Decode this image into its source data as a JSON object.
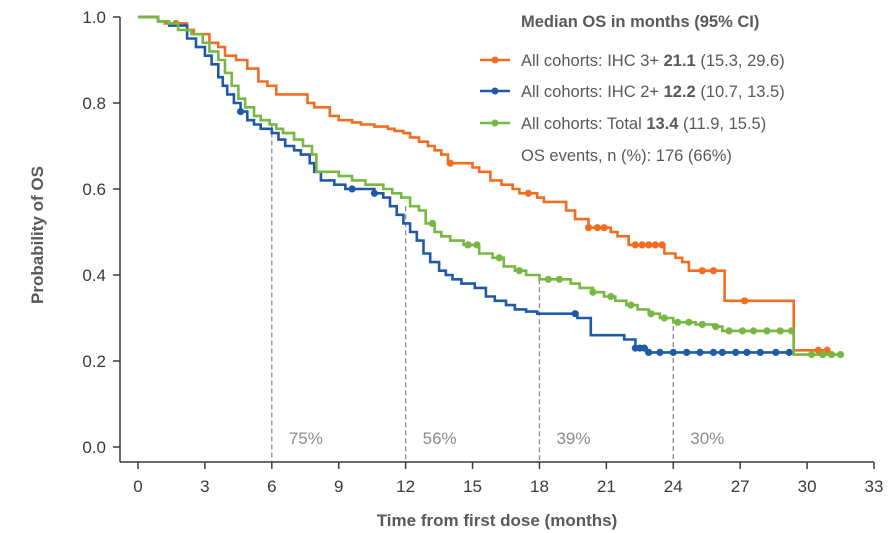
{
  "chart_data": {
    "type": "line",
    "step": true,
    "xlabel": "Time from first dose (months)",
    "ylabel": "Probability of OS",
    "xlim": [
      0,
      33
    ],
    "ylim": [
      0,
      1
    ],
    "x_ticks": [
      0,
      3,
      6,
      9,
      12,
      15,
      18,
      21,
      24,
      27,
      30,
      33
    ],
    "x_tick_labels": [
      "0",
      "3",
      "6",
      "9",
      "12",
      "15",
      "18",
      "21",
      "24",
      "27",
      "30",
      "33"
    ],
    "y_ticks": [
      0,
      0.2,
      0.4,
      0.6,
      0.8,
      1.0
    ],
    "y_tick_labels": [
      "0.0",
      "0.2",
      "0.4",
      "0.6",
      "0.8",
      "1.0"
    ],
    "grid": false,
    "legend_position": "top-right",
    "legend": {
      "title": "Median OS in months (95% CI)",
      "entries": [
        {
          "prefix": "All cohorts: IHC 3+ ",
          "median": "21.1",
          "ci": " (15.3, 29.6)"
        },
        {
          "prefix": "All cohorts: IHC 2+ ",
          "median": "12.2",
          "ci": " (10.7, 13.5)"
        },
        {
          "prefix": "All cohorts: Total ",
          "median": "13.4",
          "ci": " (11.9, 15.5)"
        }
      ],
      "footer": "OS events, n (%): 176 (66%)"
    },
    "landmarks": [
      {
        "x": 6,
        "y": 0.75,
        "label": "75%"
      },
      {
        "x": 12,
        "y": 0.56,
        "label": "56%"
      },
      {
        "x": 18,
        "y": 0.39,
        "label": "39%"
      },
      {
        "x": 24,
        "y": 0.3,
        "label": "30%"
      }
    ],
    "series": [
      {
        "name": "All cohorts: IHC 3+",
        "color": "#f26d21",
        "points": [
          [
            0,
            1.0
          ],
          [
            0.6,
            1.0
          ],
          [
            0.9,
            0.99
          ],
          [
            1.2,
            0.985
          ],
          [
            2.2,
            0.97
          ],
          [
            2.5,
            0.96
          ],
          [
            3.2,
            0.94
          ],
          [
            3.6,
            0.93
          ],
          [
            3.9,
            0.91
          ],
          [
            4.4,
            0.9
          ],
          [
            4.9,
            0.88
          ],
          [
            5.4,
            0.85
          ],
          [
            5.8,
            0.84
          ],
          [
            6.2,
            0.82
          ],
          [
            7.2,
            0.82
          ],
          [
            7.6,
            0.8
          ],
          [
            7.9,
            0.79
          ],
          [
            8.6,
            0.77
          ],
          [
            9.0,
            0.76
          ],
          [
            9.6,
            0.755
          ],
          [
            10.0,
            0.75
          ],
          [
            10.6,
            0.745
          ],
          [
            11.2,
            0.74
          ],
          [
            11.5,
            0.735
          ],
          [
            11.9,
            0.73
          ],
          [
            12.2,
            0.72
          ],
          [
            12.6,
            0.71
          ],
          [
            13.0,
            0.7
          ],
          [
            13.3,
            0.69
          ],
          [
            13.6,
            0.68
          ],
          [
            13.9,
            0.66
          ],
          [
            14.7,
            0.66
          ],
          [
            15.0,
            0.65
          ],
          [
            15.3,
            0.64
          ],
          [
            15.8,
            0.62
          ],
          [
            16.3,
            0.61
          ],
          [
            16.8,
            0.6
          ],
          [
            17.1,
            0.59
          ],
          [
            17.6,
            0.59
          ],
          [
            17.9,
            0.58
          ],
          [
            18.2,
            0.57
          ],
          [
            19.2,
            0.55
          ],
          [
            19.6,
            0.53
          ],
          [
            20.2,
            0.51
          ],
          [
            20.8,
            0.51
          ],
          [
            21.2,
            0.5
          ],
          [
            21.5,
            0.49
          ],
          [
            22.0,
            0.47
          ],
          [
            23.4,
            0.47
          ],
          [
            23.6,
            0.45
          ],
          [
            24.1,
            0.44
          ],
          [
            24.4,
            0.43
          ],
          [
            24.7,
            0.41
          ],
          [
            26.1,
            0.41
          ],
          [
            26.3,
            0.34
          ],
          [
            29.3,
            0.34
          ],
          [
            29.4,
            0.225
          ],
          [
            31.0,
            0.225
          ]
        ],
        "censor_x": [
          1.7,
          14.0,
          17.5,
          20.2,
          20.6,
          20.9,
          22.3,
          22.6,
          22.9,
          23.2,
          23.5,
          25.3,
          25.8,
          27.2,
          30.5,
          30.9
        ]
      },
      {
        "name": "All cohorts: IHC 2+",
        "color": "#1f5aa6",
        "points": [
          [
            0,
            1.0
          ],
          [
            0.9,
            0.99
          ],
          [
            1.4,
            0.98
          ],
          [
            2.2,
            0.95
          ],
          [
            2.6,
            0.93
          ],
          [
            3.0,
            0.91
          ],
          [
            3.3,
            0.89
          ],
          [
            3.6,
            0.86
          ],
          [
            3.8,
            0.84
          ],
          [
            4.0,
            0.82
          ],
          [
            4.3,
            0.8
          ],
          [
            4.6,
            0.78
          ],
          [
            4.9,
            0.76
          ],
          [
            5.2,
            0.75
          ],
          [
            5.5,
            0.74
          ],
          [
            6.0,
            0.73
          ],
          [
            6.3,
            0.715
          ],
          [
            6.6,
            0.7
          ],
          [
            7.0,
            0.69
          ],
          [
            7.3,
            0.68
          ],
          [
            7.7,
            0.66
          ],
          [
            7.9,
            0.64
          ],
          [
            8.2,
            0.62
          ],
          [
            8.8,
            0.61
          ],
          [
            9.3,
            0.6
          ],
          [
            10.1,
            0.6
          ],
          [
            10.6,
            0.59
          ],
          [
            11.0,
            0.58
          ],
          [
            11.3,
            0.56
          ],
          [
            11.6,
            0.54
          ],
          [
            11.9,
            0.52
          ],
          [
            12.2,
            0.5
          ],
          [
            12.5,
            0.48
          ],
          [
            12.8,
            0.45
          ],
          [
            13.1,
            0.43
          ],
          [
            13.5,
            0.41
          ],
          [
            13.8,
            0.4
          ],
          [
            14.1,
            0.39
          ],
          [
            14.5,
            0.38
          ],
          [
            15.1,
            0.37
          ],
          [
            15.6,
            0.35
          ],
          [
            16.0,
            0.34
          ],
          [
            16.5,
            0.33
          ],
          [
            16.9,
            0.32
          ],
          [
            17.4,
            0.315
          ],
          [
            17.9,
            0.31
          ],
          [
            19.4,
            0.31
          ],
          [
            19.7,
            0.3
          ],
          [
            20.3,
            0.26
          ],
          [
            21.6,
            0.26
          ],
          [
            21.8,
            0.25
          ],
          [
            22.3,
            0.23
          ],
          [
            22.8,
            0.22
          ],
          [
            29.3,
            0.22
          ]
        ],
        "censor_x": [
          4.6,
          9.6,
          10.6,
          19.6,
          22.3,
          22.5,
          22.7,
          22.9,
          23.4,
          24.0,
          24.6,
          25.2,
          25.8,
          26.2,
          26.8,
          27.3,
          27.9,
          28.6,
          29.2
        ]
      },
      {
        "name": "All cohorts: Total",
        "color": "#77b843",
        "points": [
          [
            0,
            1.0
          ],
          [
            0.9,
            0.99
          ],
          [
            1.4,
            0.985
          ],
          [
            1.8,
            0.97
          ],
          [
            2.4,
            0.96
          ],
          [
            2.9,
            0.94
          ],
          [
            3.2,
            0.92
          ],
          [
            3.6,
            0.9
          ],
          [
            3.9,
            0.87
          ],
          [
            4.2,
            0.84
          ],
          [
            4.5,
            0.81
          ],
          [
            4.8,
            0.79
          ],
          [
            5.2,
            0.77
          ],
          [
            5.5,
            0.76
          ],
          [
            5.9,
            0.75
          ],
          [
            6.2,
            0.74
          ],
          [
            6.5,
            0.73
          ],
          [
            7.0,
            0.715
          ],
          [
            7.4,
            0.7
          ],
          [
            7.8,
            0.68
          ],
          [
            8.0,
            0.64
          ],
          [
            9.0,
            0.63
          ],
          [
            9.6,
            0.62
          ],
          [
            10.2,
            0.61
          ],
          [
            11.0,
            0.6
          ],
          [
            11.4,
            0.59
          ],
          [
            11.8,
            0.58
          ],
          [
            12.2,
            0.56
          ],
          [
            12.6,
            0.55
          ],
          [
            12.9,
            0.52
          ],
          [
            13.3,
            0.5
          ],
          [
            13.6,
            0.49
          ],
          [
            14.0,
            0.48
          ],
          [
            14.6,
            0.47
          ],
          [
            15.3,
            0.45
          ],
          [
            15.9,
            0.44
          ],
          [
            16.4,
            0.42
          ],
          [
            16.9,
            0.41
          ],
          [
            17.4,
            0.4
          ],
          [
            18.0,
            0.39
          ],
          [
            19.0,
            0.39
          ],
          [
            19.4,
            0.38
          ],
          [
            19.8,
            0.37
          ],
          [
            20.4,
            0.36
          ],
          [
            20.9,
            0.35
          ],
          [
            21.4,
            0.34
          ],
          [
            21.9,
            0.33
          ],
          [
            22.4,
            0.32
          ],
          [
            22.9,
            0.31
          ],
          [
            23.4,
            0.3
          ],
          [
            24.0,
            0.29
          ],
          [
            25.0,
            0.285
          ],
          [
            25.8,
            0.28
          ],
          [
            26.2,
            0.27
          ],
          [
            29.3,
            0.27
          ],
          [
            29.4,
            0.215
          ],
          [
            31.5,
            0.215
          ]
        ],
        "censor_x": [
          13.2,
          14.8,
          15.2,
          16.2,
          17.1,
          18.4,
          18.9,
          20.4,
          21.2,
          22.1,
          23.0,
          23.6,
          24.2,
          24.7,
          25.3,
          25.9,
          26.5,
          27.1,
          27.6,
          28.2,
          28.8,
          29.3,
          30.2,
          30.7,
          31.1,
          31.5
        ]
      }
    ]
  }
}
